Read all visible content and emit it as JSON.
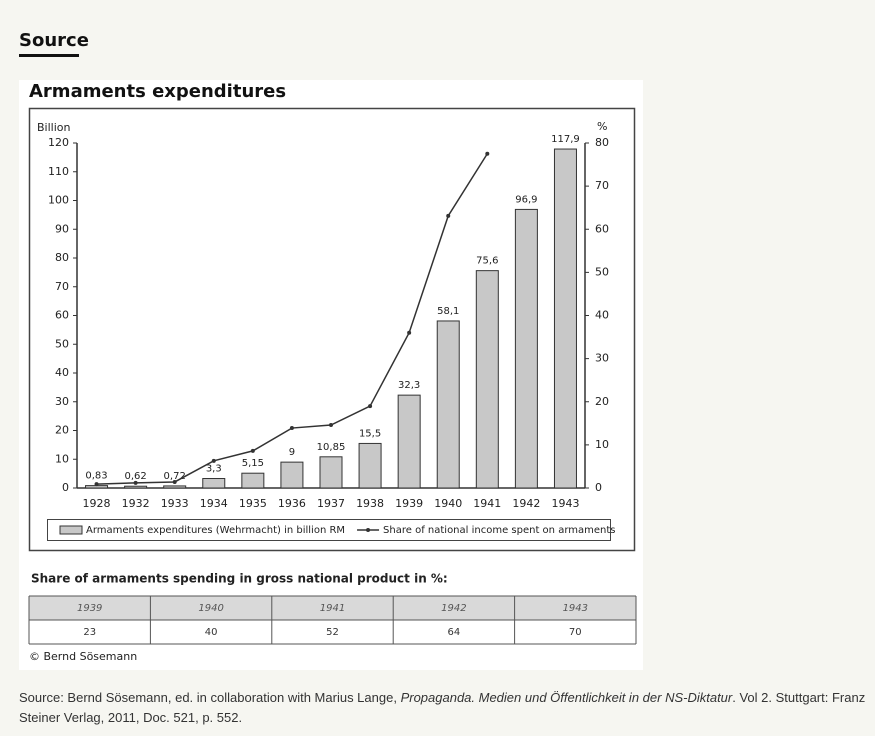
{
  "heading": "Source",
  "chart_data": {
    "type": "bar",
    "title": "Armaments expenditures",
    "ylabel": "Billion",
    "y2label": "%",
    "categories": [
      "1928",
      "1932",
      "1933",
      "1934",
      "1935",
      "1936",
      "1937",
      "1938",
      "1939",
      "1940",
      "1941",
      "1942",
      "1943"
    ],
    "series": [
      {
        "name": "Armaments expenditures (Wehrmacht) in billion RM",
        "type": "bar",
        "color": "#c8c8c8",
        "values": [
          0.83,
          0.62,
          0.72,
          3.3,
          5.15,
          9,
          10.85,
          15.5,
          32.3,
          58.1,
          75.6,
          96.9,
          117.9
        ],
        "value_labels": [
          "0,83",
          "0,62",
          "0,72",
          "3,3",
          "5,15",
          "9",
          "10,85",
          "15,5",
          "32,3",
          "58,1",
          "75,6",
          "96,9",
          "117,9"
        ]
      },
      {
        "name": "Share of national income spent on armaments",
        "type": "line",
        "axis": "y2",
        "color": "#333333",
        "values": [
          0.9,
          1.2,
          1.4,
          6.3,
          8.6,
          13.9,
          14.6,
          19,
          36,
          63.1,
          77.5,
          null,
          null
        ]
      }
    ],
    "ylim": [
      0,
      120
    ],
    "yticks": [
      0,
      10,
      20,
      30,
      40,
      50,
      60,
      70,
      80,
      90,
      100,
      110,
      120
    ],
    "y2lim": [
      0,
      80
    ],
    "y2ticks": [
      0,
      10,
      20,
      30,
      40,
      50,
      60,
      70,
      80
    ],
    "grid": false,
    "legend": "bottom"
  },
  "table": {
    "title": "Share of armaments spending in gross national product in %:",
    "header": [
      "1939",
      "1940",
      "1941",
      "1942",
      "1943"
    ],
    "rows": [
      [
        "23",
        "40",
        "52",
        "64",
        "70"
      ]
    ]
  },
  "copyright": "© Bernd Sösemann",
  "caption": {
    "text_1": "Source: Bernd Sösemann, ed. in collaboration with Marius Lange, ",
    "title": "Propaganda. Medien und Öffentlichkeit in der NS-Diktatur",
    "text_2": ". Vol 2. Stuttgart: Franz Steiner Verlag, 2011, Doc. 521, p. 552."
  }
}
